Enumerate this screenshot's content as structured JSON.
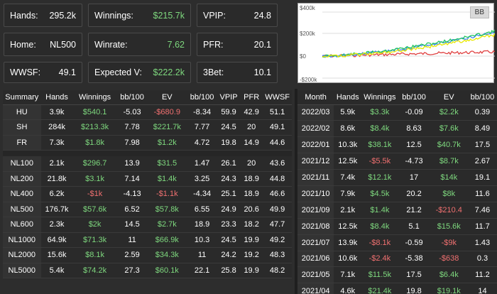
{
  "stats": [
    {
      "label": "Hands:",
      "value": "295.2k",
      "cls": ""
    },
    {
      "label": "Winnings:",
      "value": "$215.7k",
      "cls": "pos"
    },
    {
      "label": "VPIP:",
      "value": "24.8",
      "cls": ""
    },
    {
      "label": "Home:",
      "value": "NL500",
      "cls": ""
    },
    {
      "label": "Winrate:",
      "value": "7.62",
      "cls": "pos"
    },
    {
      "label": "PFR:",
      "value": "20.1",
      "cls": ""
    },
    {
      "label": "WWSF:",
      "value": "49.1",
      "cls": ""
    },
    {
      "label": "Expected V:",
      "value": "$222.2k",
      "cls": "pos"
    },
    {
      "label": "3Bet:",
      "value": "10.1",
      "cls": ""
    }
  ],
  "chart": {
    "badge": "BB",
    "ylabels": [
      "$400k",
      "$200k",
      "$0",
      "-$200k"
    ]
  },
  "summary": {
    "headers": [
      "Summary",
      "Hands",
      "Winnings",
      "bb/100",
      "EV",
      "bb/100",
      "VPIP",
      "PFR",
      "WWSF"
    ],
    "groups": [
      [
        [
          "HU",
          "3.9k",
          "$540.1",
          "-5.03",
          "-$680.9",
          "-8.34",
          "59.9",
          "42.9",
          "51.1"
        ],
        [
          "SH",
          "284k",
          "$213.3k",
          "7.78",
          "$221.7k",
          "7.77",
          "24.5",
          "20",
          "49.1"
        ],
        [
          "FR",
          "7.3k",
          "$1.8k",
          "7.98",
          "$1.2k",
          "4.72",
          "19.8",
          "14.9",
          "44.6"
        ]
      ],
      [
        [
          "NL100",
          "2.1k",
          "$296.7",
          "13.9",
          "$31.5",
          "1.47",
          "26.1",
          "20",
          "43.6"
        ],
        [
          "NL200",
          "21.8k",
          "$3.1k",
          "7.14",
          "$1.4k",
          "3.25",
          "24.3",
          "18.9",
          "44.8"
        ],
        [
          "NL400",
          "6.2k",
          "-$1k",
          "-4.13",
          "-$1.1k",
          "-4.34",
          "25.1",
          "18.9",
          "46.6"
        ],
        [
          "NL500",
          "176.7k",
          "$57.6k",
          "6.52",
          "$57.8k",
          "6.55",
          "24.9",
          "20.6",
          "49.9"
        ],
        [
          "NL600",
          "2.3k",
          "$2k",
          "14.5",
          "$2.7k",
          "18.9",
          "23.3",
          "18.2",
          "47.7"
        ],
        [
          "NL1000",
          "64.9k",
          "$71.3k",
          "11",
          "$66.9k",
          "10.3",
          "24.5",
          "19.9",
          "49.2"
        ],
        [
          "NL2000",
          "15.6k",
          "$8.1k",
          "2.59",
          "$34.3k",
          "11",
          "24.2",
          "19.2",
          "48.3"
        ],
        [
          "NL5000",
          "5.4k",
          "$74.2k",
          "27.3",
          "$60.1k",
          "22.1",
          "25.8",
          "19.9",
          "48.2"
        ]
      ]
    ]
  },
  "monthly": {
    "headers": [
      "Month",
      "Hands",
      "Winnings",
      "bb/100",
      "EV",
      "bb/100"
    ],
    "rows": [
      [
        "2022/03",
        "5.9k",
        "$3.3k",
        "-0.09",
        "$2.2k",
        "0.39"
      ],
      [
        "2022/02",
        "8.6k",
        "$8.4k",
        "8.63",
        "$7.6k",
        "8.49"
      ],
      [
        "2022/01",
        "10.3k",
        "$38.1k",
        "12.5",
        "$40.7k",
        "17.5"
      ],
      [
        "2021/12",
        "12.5k",
        "-$5.5k",
        "-4.73",
        "$8.7k",
        "2.67"
      ],
      [
        "2021/11",
        "7.4k",
        "$12.1k",
        "17",
        "$14k",
        "19.1"
      ],
      [
        "2021/10",
        "7.9k",
        "$4.5k",
        "20.2",
        "$8k",
        "11.6"
      ],
      [
        "2021/09",
        "2.1k",
        "$1.4k",
        "21.2",
        "-$210.4",
        "7.46"
      ],
      [
        "2021/08",
        "12.5k",
        "$8.4k",
        "5.1",
        "$15.6k",
        "11.7"
      ],
      [
        "2021/07",
        "13.9k",
        "-$8.1k",
        "-0.59",
        "-$9k",
        "1.43"
      ],
      [
        "2021/06",
        "10.6k",
        "-$2.4k",
        "-5.38",
        "-$638",
        "0.3"
      ],
      [
        "2021/05",
        "7.1k",
        "$11.5k",
        "17.5",
        "$6.4k",
        "11.2"
      ],
      [
        "2021/04",
        "4.6k",
        "$21.4k",
        "19.8",
        "$19.1k",
        "14"
      ]
    ]
  },
  "colors": {
    "positive": "#7ed87e",
    "negative": "#f07070",
    "green_line": "#22c55e",
    "blue_line": "#3b82f6",
    "yellow_line": "#e8e800",
    "red_line": "#e04040"
  }
}
